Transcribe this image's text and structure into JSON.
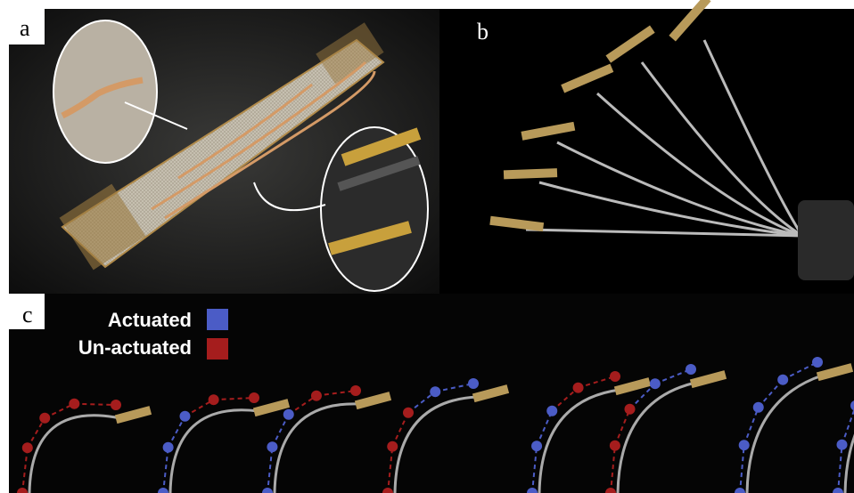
{
  "panels": [
    {
      "label": "a"
    },
    {
      "label": "b"
    },
    {
      "label": "c"
    }
  ],
  "legend": [
    {
      "label": "Actuated",
      "color": "#4b5cc6"
    },
    {
      "label": "Un-actuated",
      "color": "#a51d1d"
    }
  ]
}
